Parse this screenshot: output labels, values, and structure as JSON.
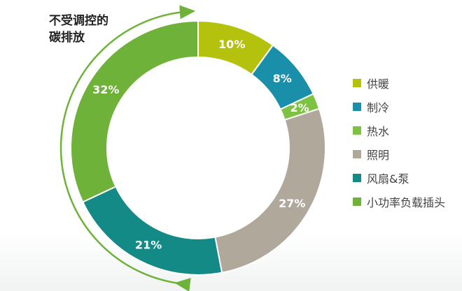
{
  "annotation": {
    "line1": "不受调控的",
    "line2": "碳排放"
  },
  "chart_data": {
    "type": "pie",
    "categories": [
      "供暖",
      "制冷",
      "热水",
      "照明",
      "风扇&泵",
      "小功率负载插头"
    ],
    "values": [
      10,
      8,
      2,
      27,
      21,
      32
    ],
    "labels": [
      "10%",
      "8%",
      "2%",
      "27%",
      "21%",
      "32%"
    ],
    "colors": [
      "#b5c20d",
      "#1a8faa",
      "#7dc243",
      "#b1a89c",
      "#138a86",
      "#6fb23a"
    ],
    "label_colors": [
      "#ffffff",
      "#ffffff",
      "#ffffff",
      "#ffffff",
      "#ffffff",
      "#ffffff"
    ],
    "donut": true,
    "legend_position": "right"
  }
}
